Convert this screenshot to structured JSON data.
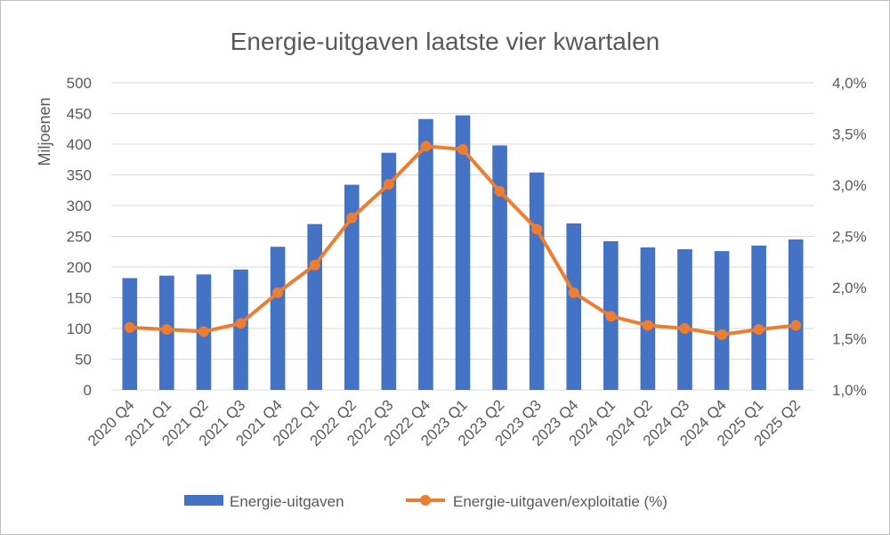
{
  "chart_data": {
    "type": "bar",
    "title": "Energie-uitgaven laatste vier kwartalen",
    "ylabel": "Miljoenen",
    "ylim": [
      0,
      500
    ],
    "y_ticks": [
      "0",
      "50",
      "100",
      "150",
      "200",
      "250",
      "300",
      "350",
      "400",
      "450",
      "500"
    ],
    "y2lim": [
      1.0,
      4.0
    ],
    "y2_ticks": [
      "1,0%",
      "1,5%",
      "2,0%",
      "2,5%",
      "3,0%",
      "3,5%",
      "4,0%"
    ],
    "grid": true,
    "legend_position": "bottom",
    "categories": [
      "2020 Q4",
      "2021 Q1",
      "2021 Q2",
      "2021 Q3",
      "2021 Q4",
      "2022 Q1",
      "2022 Q2",
      "2022 Q3",
      "2022 Q4",
      "2023 Q1",
      "2023 Q2",
      "2023 Q3",
      "2023 Q4",
      "2024 Q1",
      "2024 Q2",
      "2024 Q3",
      "2024 Q4",
      "2025 Q1",
      "2025 Q2"
    ],
    "series": [
      {
        "name": "Energie-uitgaven",
        "type": "bar",
        "axis": "left",
        "color": "#4472c4",
        "values": [
          182,
          186,
          188,
          196,
          233,
          270,
          334,
          386,
          441,
          447,
          398,
          354,
          271,
          242,
          232,
          229,
          226,
          235,
          245
        ]
      },
      {
        "name": "Energie-uitgaven/exploitatie (%)",
        "type": "line",
        "axis": "right",
        "color": "#ed7d31",
        "values": [
          1.61,
          1.59,
          1.57,
          1.65,
          1.95,
          2.22,
          2.68,
          3.01,
          3.38,
          3.35,
          2.94,
          2.57,
          1.95,
          1.72,
          1.63,
          1.6,
          1.54,
          1.59,
          1.63
        ]
      }
    ]
  }
}
